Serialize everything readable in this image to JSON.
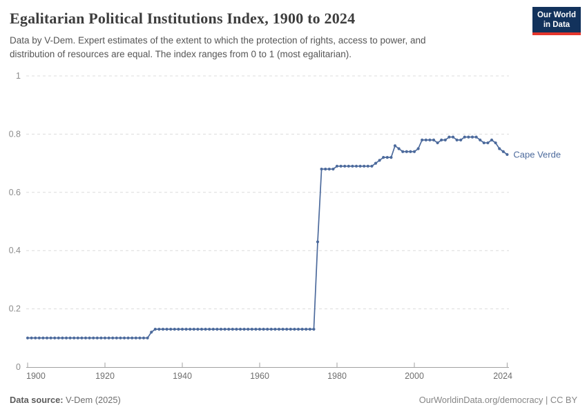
{
  "logo": {
    "line1": "Our World",
    "line2": "in Data",
    "bg_color": "#12325c",
    "bar_color": "#e5362c"
  },
  "footer": {
    "datasource_label": "Data source:",
    "datasource_value": " V-Dem (2025)",
    "credit": "OurWorldinData.org/democracy | CC BY"
  },
  "chart_data": {
    "type": "line",
    "title": "Egalitarian Political Institutions Index, 1900 to 2024",
    "subtitle_line1": "Data by V-Dem. Expert estimates of the extent to which the protection of rights, access to power, and",
    "subtitle_line2": "distribution of resources are equal. The index ranges from 0 to 1 (most egalitarian).",
    "xlabel": "",
    "ylabel": "",
    "xlim": [
      1900,
      2024
    ],
    "ylim": [
      0,
      1
    ],
    "x_ticks": [
      1900,
      1920,
      1940,
      1960,
      1980,
      2000,
      2024
    ],
    "y_ticks": [
      "0",
      "0.2",
      "0.4",
      "0.6",
      "0.8",
      "1"
    ],
    "grid": "horizontal-dashed",
    "legend_position": "end-of-line-label",
    "series": [
      {
        "name": "Cape Verde",
        "color": "#4c6a9c",
        "x_start": 1900,
        "x_step": 1,
        "values": [
          0.1,
          0.1,
          0.1,
          0.1,
          0.1,
          0.1,
          0.1,
          0.1,
          0.1,
          0.1,
          0.1,
          0.1,
          0.1,
          0.1,
          0.1,
          0.1,
          0.1,
          0.1,
          0.1,
          0.1,
          0.1,
          0.1,
          0.1,
          0.1,
          0.1,
          0.1,
          0.1,
          0.1,
          0.1,
          0.1,
          0.1,
          0.1,
          0.12,
          0.13,
          0.13,
          0.13,
          0.13,
          0.13,
          0.13,
          0.13,
          0.13,
          0.13,
          0.13,
          0.13,
          0.13,
          0.13,
          0.13,
          0.13,
          0.13,
          0.13,
          0.13,
          0.13,
          0.13,
          0.13,
          0.13,
          0.13,
          0.13,
          0.13,
          0.13,
          0.13,
          0.13,
          0.13,
          0.13,
          0.13,
          0.13,
          0.13,
          0.13,
          0.13,
          0.13,
          0.13,
          0.13,
          0.13,
          0.13,
          0.13,
          0.13,
          0.43,
          0.68,
          0.68,
          0.68,
          0.68,
          0.69,
          0.69,
          0.69,
          0.69,
          0.69,
          0.69,
          0.69,
          0.69,
          0.69,
          0.69,
          0.7,
          0.71,
          0.72,
          0.72,
          0.72,
          0.76,
          0.75,
          0.74,
          0.74,
          0.74,
          0.74,
          0.75,
          0.78,
          0.78,
          0.78,
          0.78,
          0.77,
          0.78,
          0.78,
          0.79,
          0.79,
          0.78,
          0.78,
          0.79,
          0.79,
          0.79,
          0.79,
          0.78,
          0.77,
          0.77,
          0.78,
          0.77,
          0.75,
          0.74,
          0.73
        ]
      }
    ]
  }
}
